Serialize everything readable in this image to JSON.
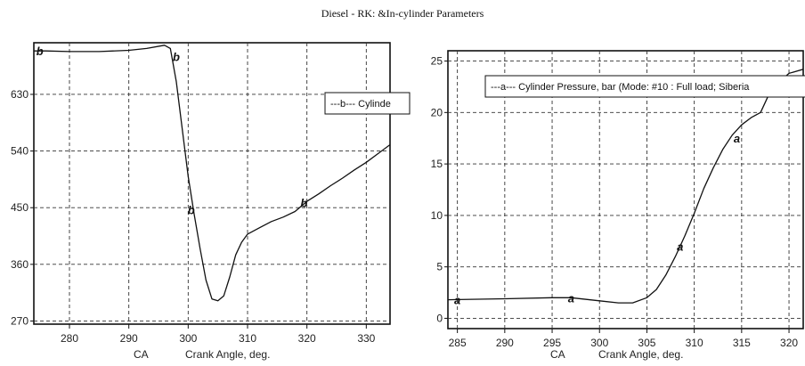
{
  "page": {
    "title": "Diesel - RK: &In-cylinder Parameters"
  },
  "chart_data": [
    {
      "type": "line",
      "title": "",
      "xlabel": "Crank Angle, deg.",
      "xlabel_prefix": "CA",
      "ylabel": "",
      "xlim": [
        274,
        334
      ],
      "ylim": [
        265,
        712
      ],
      "x_ticks": [
        280,
        290,
        300,
        310,
        320,
        330
      ],
      "y_ticks": [
        270,
        360,
        450,
        540,
        630
      ],
      "grid": true,
      "legend": {
        "text": "---b--- Cylinde",
        "position": "top-right"
      },
      "series": [
        {
          "marker": "b",
          "x": [
            274,
            276,
            280,
            285,
            290,
            293,
            296,
            297,
            298,
            300,
            301,
            302,
            303,
            304,
            305,
            306,
            307,
            308,
            309,
            310,
            312,
            314,
            316,
            318,
            320,
            322,
            324,
            326,
            328,
            330,
            332,
            334
          ],
          "y": [
            699,
            699,
            698,
            698,
            700,
            703,
            708,
            703,
            650,
            500,
            440,
            385,
            335,
            305,
            302,
            310,
            340,
            375,
            395,
            408,
            418,
            428,
            435,
            444,
            460,
            472,
            485,
            497,
            510,
            522,
            536,
            550
          ],
          "marker_x": [
            275,
            298,
            300.5,
            319.5
          ],
          "marker_y": [
            699,
            690,
            447,
            458
          ]
        }
      ]
    },
    {
      "type": "line",
      "title": "",
      "xlabel": "Crank Angle, deg.",
      "xlabel_prefix": "CA",
      "ylabel": "",
      "xlim": [
        284,
        321.5
      ],
      "ylim": [
        -1,
        26
      ],
      "x_ticks": [
        285,
        290,
        295,
        300,
        305,
        310,
        315,
        320
      ],
      "y_ticks": [
        0,
        5,
        10,
        15,
        20,
        25
      ],
      "grid": true,
      "legend": {
        "text": "---a--- Cylinder Pressure, bar (Mode: #10 : Full load; Siberia",
        "position": "top"
      },
      "series": [
        {
          "name": "Cylinder Pressure, bar",
          "marker": "a",
          "x": [
            284,
            290,
            295,
            297,
            300,
            302,
            303.5,
            305,
            306,
            307,
            308,
            309,
            310,
            311,
            312,
            313,
            314,
            315,
            316,
            317,
            318,
            319,
            320,
            321.5
          ],
          "y": [
            1.8,
            1.9,
            2.0,
            2.0,
            1.7,
            1.5,
            1.5,
            2.0,
            2.8,
            4.2,
            6.0,
            8.0,
            10.2,
            12.6,
            14.6,
            16.4,
            17.8,
            18.8,
            19.5,
            20.0,
            22.0,
            23.0,
            23.8,
            24.2
          ],
          "marker_x": [
            285,
            297,
            308.5,
            314.5
          ],
          "marker_y": [
            1.8,
            2.0,
            7.0,
            17.5
          ]
        }
      ]
    }
  ]
}
